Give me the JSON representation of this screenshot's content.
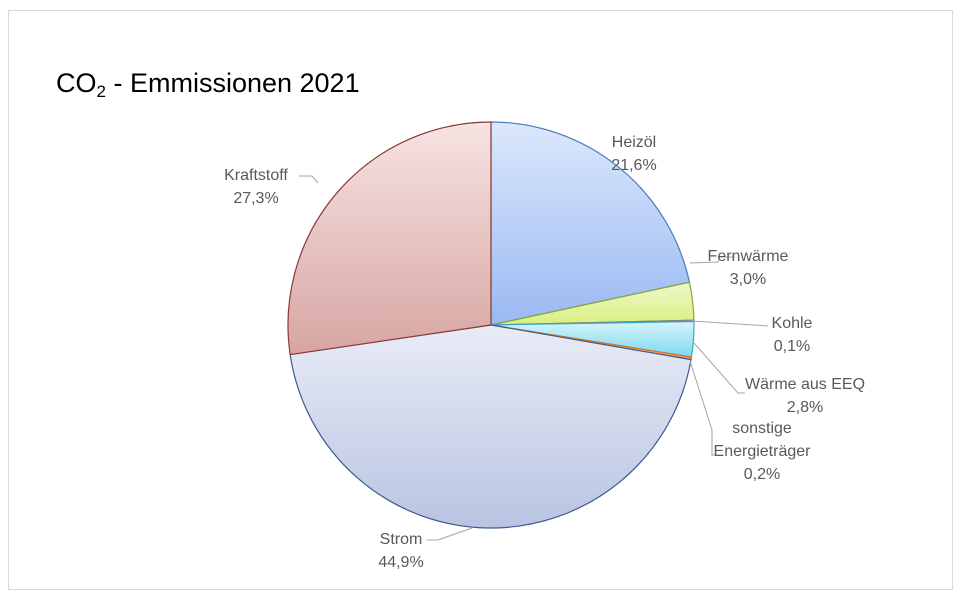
{
  "chart_data": {
    "type": "pie",
    "title": {
      "prefix": "CO",
      "subscript": "2",
      "suffix": " - Emmissionen 2021"
    },
    "slices": [
      {
        "label": [
          "Heizöl"
        ],
        "percent_text": "21,6%",
        "value": 21.6,
        "fill_top": "#dce8fb",
        "fill_bottom": "#9ab9f3",
        "stroke": "#4a7cc1"
      },
      {
        "label": [
          "Fernwärme"
        ],
        "percent_text": "3,0%",
        "value": 3.0,
        "fill_top": "#eef7cf",
        "fill_bottom": "#d9f07f",
        "stroke": "#8aa533"
      },
      {
        "label": [
          "Kohle"
        ],
        "percent_text": "0,1%",
        "value": 0.1,
        "fill_top": "#f2f2f2",
        "fill_bottom": "#bfbfbf",
        "stroke": "#7f7f7f"
      },
      {
        "label": [
          "Wärme aus EEQ"
        ],
        "percent_text": "2,8%",
        "value": 2.8,
        "fill_top": "#d6f4fb",
        "fill_bottom": "#7dd8f0",
        "stroke": "#3aa6c6"
      },
      {
        "label": [
          "sonstige",
          "Energieträger"
        ],
        "percent_text": "0,2%",
        "value": 0.2,
        "fill_top": "#fbd9b6",
        "fill_bottom": "#f29a48",
        "stroke": "#d9731f"
      },
      {
        "label": [
          "Strom"
        ],
        "percent_text": "44,9%",
        "value": 44.9,
        "fill_top": "#e9ecf6",
        "fill_bottom": "#b9c4e2",
        "stroke": "#3e5a93"
      },
      {
        "label": [
          "Kraftstoff"
        ],
        "percent_text": "27,3%",
        "value": 27.3,
        "fill_top": "#f6e4e3",
        "fill_bottom": "#d7a5a2",
        "stroke": "#8b3a36"
      }
    ]
  }
}
